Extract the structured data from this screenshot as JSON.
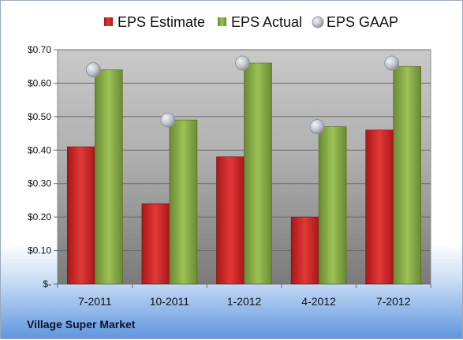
{
  "footer": {
    "company": "Village Super Market"
  },
  "colors": {
    "estimate": "#d02a2a",
    "actual": "#8bb04a",
    "gaap": "#bfc3c9",
    "plot_top": "#c9c9c9",
    "plot_bottom": "#7a7a7a"
  },
  "chart_data": {
    "type": "bar",
    "title": "",
    "xlabel": "",
    "ylabel": "",
    "categories": [
      "7-2011",
      "10-2011",
      "1-2012",
      "4-2012",
      "7-2012"
    ],
    "series": [
      {
        "name": "EPS Estimate",
        "kind": "bar",
        "values": [
          0.41,
          0.24,
          0.38,
          0.2,
          0.46
        ]
      },
      {
        "name": "EPS Actual",
        "kind": "bar",
        "values": [
          0.64,
          0.49,
          0.66,
          0.47,
          0.65
        ]
      },
      {
        "name": "EPS GAAP",
        "kind": "marker",
        "values": [
          0.64,
          0.49,
          0.66,
          0.47,
          0.66
        ]
      }
    ],
    "ylim": [
      0,
      0.7
    ],
    "yticks": [
      0,
      0.1,
      0.2,
      0.3,
      0.4,
      0.5,
      0.6,
      0.7
    ],
    "ytick_labels": [
      "$-",
      "$0.10",
      "$0.20",
      "$0.30",
      "$0.40",
      "$0.50",
      "$0.60",
      "$0.70"
    ],
    "grid": true,
    "legend_position": "top"
  }
}
